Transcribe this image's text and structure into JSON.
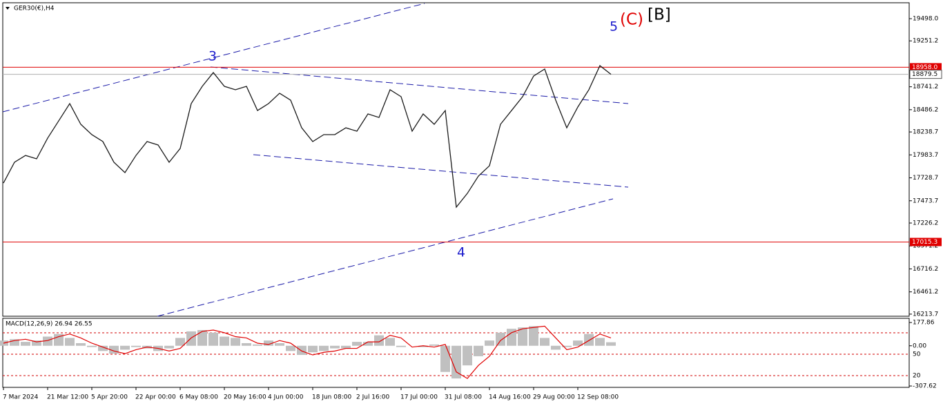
{
  "chart_data": {
    "type": "line",
    "symbol": "GER30(€),H4",
    "categories": [
      "7 Mar 2024",
      null,
      null,
      null,
      "21 Mar 12:00",
      null,
      null,
      null,
      "5 Apr 20:00",
      null,
      null,
      null,
      "22 Apr 00:00",
      null,
      null,
      null,
      "6 May 08:00",
      null,
      null,
      null,
      "20 May 16:00",
      null,
      null,
      null,
      "4 Jun 00:00",
      null,
      null,
      null,
      "18 Jun 08:00",
      null,
      null,
      null,
      "2 Jul 16:00",
      null,
      null,
      null,
      "17 Jul 00:00",
      null,
      null,
      null,
      "31 Jul 08:00",
      null,
      null,
      null,
      "14 Aug 16:00",
      null,
      null,
      null,
      "29 Aug 00:00",
      null,
      null,
      null,
      "12 Sep 08:00",
      null,
      null,
      null
    ],
    "values": [
      17671,
      17902,
      17978,
      17940,
      18170,
      18362,
      18554,
      18324,
      18209,
      18132,
      17902,
      17787,
      17978,
      18132,
      18094,
      17902,
      18055,
      18554,
      18746,
      18899,
      18746,
      18708,
      18746,
      18477,
      18554,
      18669,
      18592,
      18285,
      18132,
      18209,
      18209,
      18285,
      18247,
      18439,
      18400,
      18708,
      18631,
      18247,
      18439,
      18324,
      18477,
      17403,
      17556,
      17748,
      17863,
      18324,
      18477,
      18631,
      18861,
      18938,
      18592,
      18285,
      18516,
      18708,
      18976,
      18879.5
    ],
    "color": "#1a1a1a",
    "ylim": [
      16190,
      19675
    ],
    "yticks": [
      {
        "value": 19498,
        "label": "19498.0"
      },
      {
        "value": 19251.2,
        "label": "19251.2"
      },
      {
        "value": 18741.2,
        "label": "18741.2"
      },
      {
        "value": 18486.2,
        "label": "18486.2"
      },
      {
        "value": 18238.7,
        "label": "18238.7"
      },
      {
        "value": 17983.7,
        "label": "17983.7"
      },
      {
        "value": 17728.7,
        "label": "17728.7"
      },
      {
        "value": 17473.7,
        "label": "17473.7"
      },
      {
        "value": 17226.2,
        "label": "17226.2"
      },
      {
        "value": 16971.2,
        "label": "16971.2"
      },
      {
        "value": 16716.2,
        "label": "16716.2"
      },
      {
        "value": 16461.2,
        "label": "16461.2"
      },
      {
        "value": 16213.7,
        "label": "16213.7"
      }
    ],
    "hlines": [
      {
        "value": 18958,
        "label": "18958.0",
        "color": "#e00000"
      },
      {
        "value": 17015.3,
        "label": "17015.3",
        "color": "#e00000"
      }
    ],
    "current": {
      "value": 18879.5,
      "label": "18879.5"
    },
    "wave_labels": {
      "w3": "3",
      "w4": "4",
      "w5": "5",
      "c": "(C)",
      "b": "[B]"
    },
    "macd": {
      "title": "MACD(12,26,9) 26.94 26.55",
      "ylim": [
        -318,
        210
      ],
      "yticks": [
        {
          "value": 177.86,
          "label": "177.86"
        },
        {
          "value": 0,
          "label": "0.00"
        },
        {
          "value": -307.62,
          "label": "-307.62"
        }
      ],
      "level_labels": [
        "50",
        "20"
      ],
      "hist_color": "#c0c0c0",
      "signal_color": "#e00000",
      "hist": [
        40,
        50,
        30,
        40,
        70,
        90,
        60,
        20,
        -10,
        -40,
        -60,
        -30,
        -10,
        -20,
        -40,
        -20,
        60,
        110,
        120,
        100,
        70,
        60,
        20,
        10,
        40,
        20,
        -40,
        -70,
        -50,
        -40,
        -20,
        -20,
        30,
        30,
        80,
        60,
        -10,
        0,
        -10,
        10,
        -200,
        -250,
        -150,
        -80,
        40,
        100,
        130,
        140,
        150,
        60,
        -30,
        -10,
        40,
        90,
        60,
        27
      ],
      "signal": [
        20,
        40,
        50,
        30,
        40,
        70,
        90,
        60,
        20,
        -10,
        -40,
        -60,
        -30,
        -10,
        -20,
        -40,
        -20,
        60,
        110,
        120,
        100,
        70,
        60,
        20,
        10,
        40,
        20,
        -40,
        -70,
        -50,
        -40,
        -20,
        -20,
        30,
        30,
        80,
        60,
        -10,
        0,
        -10,
        10,
        -200,
        -250,
        -150,
        -80,
        40,
        100,
        130,
        140,
        150,
        60,
        -30,
        -10,
        40,
        90,
        60
      ]
    }
  }
}
